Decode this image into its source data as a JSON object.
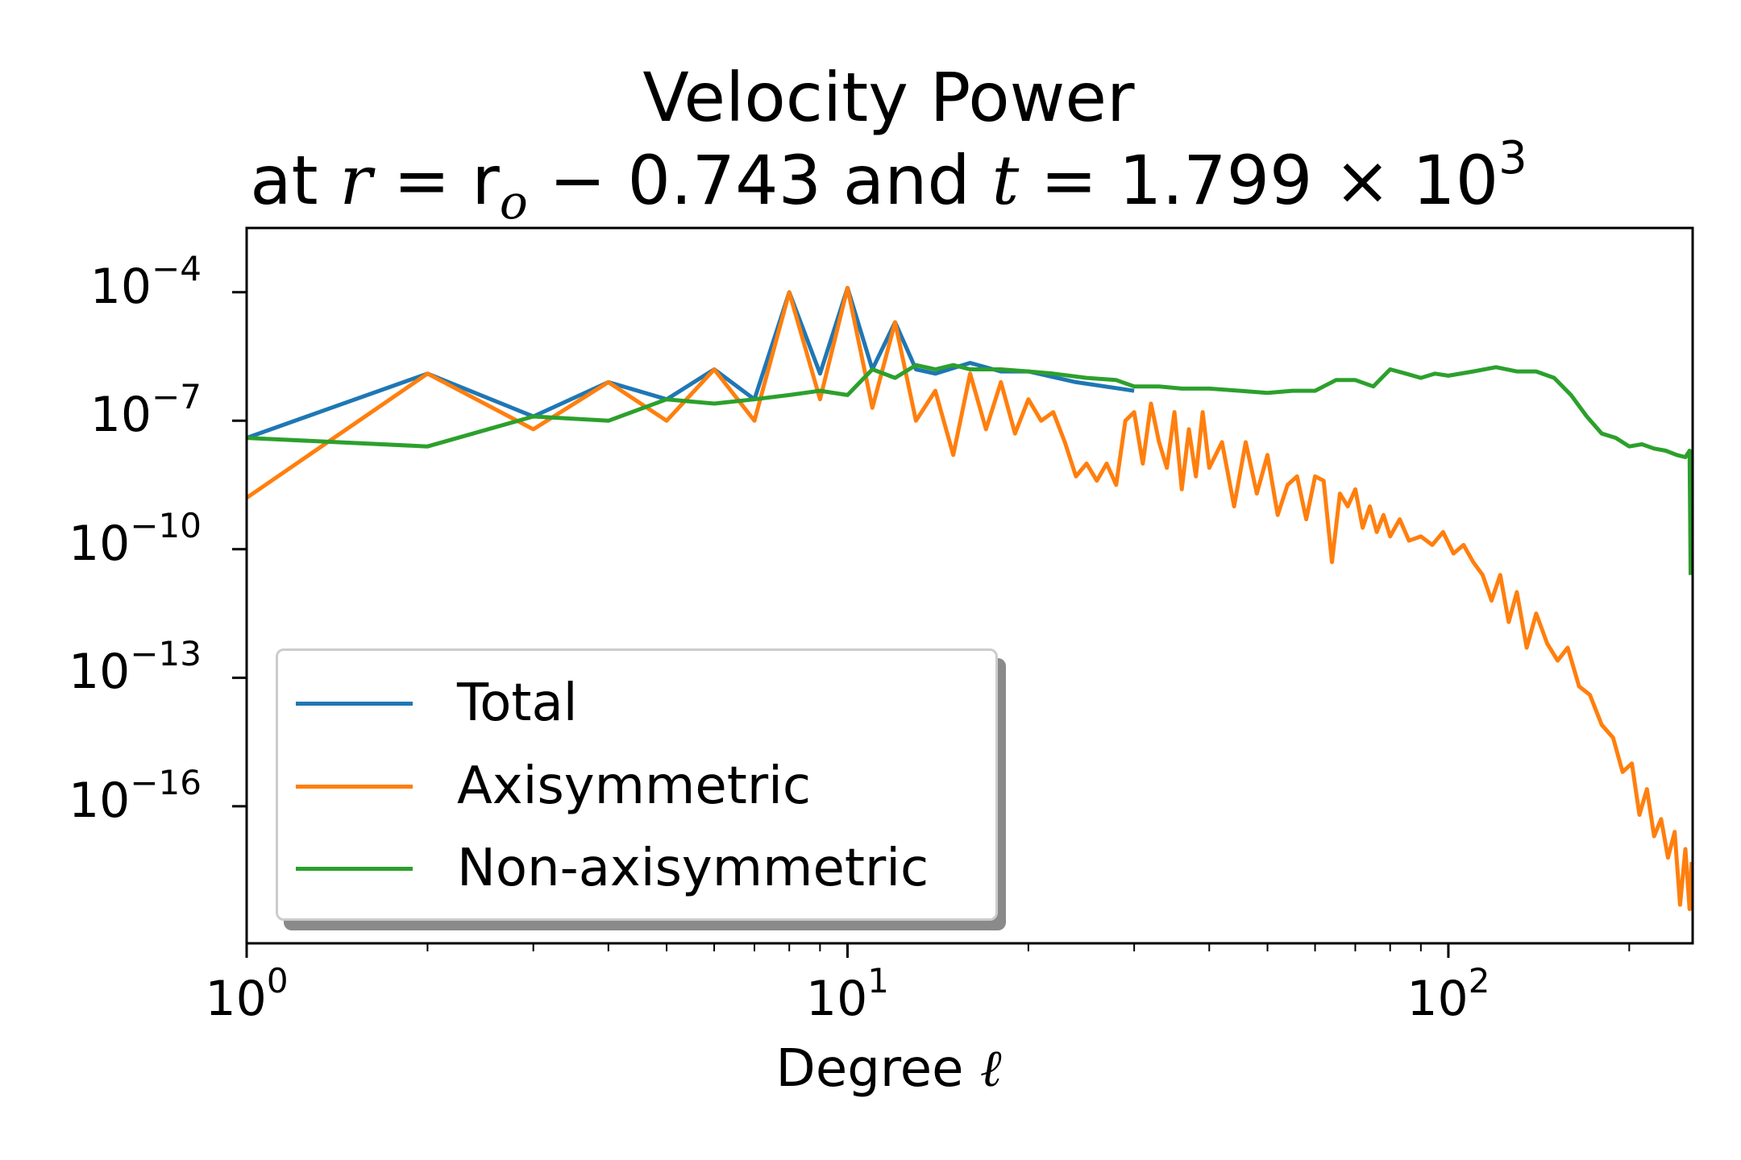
{
  "chart_data": {
    "type": "line",
    "title": "Velocity Power",
    "subtitle": {
      "prefix": "at ",
      "r_var": "r",
      "r_expr": " = r",
      "r_sub": "o",
      "r_minus": " − ",
      "r_value": "0.743",
      "and": " and ",
      "t_var": "t",
      "t_expr": " = 1.799 × 10",
      "t_exp": "3"
    },
    "xlabel": "Degree",
    "xlabel_symbol": "ℓ",
    "ylabel": "",
    "xscale": "log",
    "yscale": "log",
    "xlim": [
      1,
      255
    ],
    "ylim_log10": [
      -19.2,
      -2.5
    ],
    "x_ticks": [
      {
        "base": "10",
        "exp": "0",
        "value": 1
      },
      {
        "base": "10",
        "exp": "1",
        "value": 10
      },
      {
        "base": "10",
        "exp": "2",
        "value": 100
      }
    ],
    "y_ticks": [
      {
        "base": "10",
        "exp": "−4",
        "value": -4
      },
      {
        "base": "10",
        "exp": "−7",
        "value": -7
      },
      {
        "base": "10",
        "exp": "−10",
        "value": -10
      },
      {
        "base": "10",
        "exp": "−13",
        "value": -13
      },
      {
        "base": "10",
        "exp": "−16",
        "value": -16
      }
    ],
    "legend_position": "lower-left",
    "grid": false,
    "series": [
      {
        "name": "Total",
        "color": "#1f77b4",
        "points_log10": [
          [
            1,
            -7.4
          ],
          [
            2,
            -5.9
          ],
          [
            3,
            -6.9
          ],
          [
            4,
            -6.1
          ],
          [
            5,
            -6.5
          ],
          [
            6,
            -5.8
          ],
          [
            7,
            -6.5
          ],
          [
            8,
            -4.0
          ],
          [
            9,
            -5.9
          ],
          [
            10,
            -3.9
          ],
          [
            11,
            -5.8
          ],
          [
            12,
            -4.7
          ],
          [
            13,
            -5.8
          ],
          [
            14,
            -5.9
          ],
          [
            16,
            -5.65
          ],
          [
            18,
            -5.85
          ],
          [
            20,
            -5.85
          ],
          [
            24,
            -6.1
          ],
          [
            30,
            -6.3
          ]
        ]
      },
      {
        "name": "Axisymmetric",
        "color": "#ff7f0e",
        "points_log10": [
          [
            1,
            -8.8
          ],
          [
            2,
            -5.9
          ],
          [
            3,
            -7.2
          ],
          [
            4,
            -6.1
          ],
          [
            5,
            -7.0
          ],
          [
            6,
            -5.8
          ],
          [
            7,
            -7.0
          ],
          [
            8,
            -4.0
          ],
          [
            9,
            -6.5
          ],
          [
            10,
            -3.9
          ],
          [
            11,
            -6.7
          ],
          [
            12,
            -4.7
          ],
          [
            13,
            -7.0
          ],
          [
            14,
            -6.3
          ],
          [
            15,
            -7.8
          ],
          [
            16,
            -5.9
          ],
          [
            17,
            -7.2
          ],
          [
            18,
            -6.1
          ],
          [
            19,
            -7.3
          ],
          [
            20,
            -6.5
          ],
          [
            21,
            -7.0
          ],
          [
            22,
            -6.8
          ],
          [
            23,
            -7.5
          ],
          [
            24,
            -8.3
          ],
          [
            25,
            -8.0
          ],
          [
            26,
            -8.4
          ],
          [
            27,
            -8.0
          ],
          [
            28,
            -8.5
          ],
          [
            29,
            -7.0
          ],
          [
            30,
            -6.8
          ],
          [
            31,
            -8.0
          ],
          [
            32,
            -6.6
          ],
          [
            33,
            -7.5
          ],
          [
            34,
            -8.1
          ],
          [
            35,
            -6.8
          ],
          [
            36,
            -8.6
          ],
          [
            37,
            -7.2
          ],
          [
            38,
            -8.3
          ],
          [
            39,
            -6.8
          ],
          [
            40,
            -8.1
          ],
          [
            42,
            -7.5
          ],
          [
            44,
            -9.0
          ],
          [
            46,
            -7.5
          ],
          [
            48,
            -8.7
          ],
          [
            50,
            -7.8
          ],
          [
            52,
            -9.2
          ],
          [
            54,
            -8.5
          ],
          [
            56,
            -8.3
          ],
          [
            58,
            -9.3
          ],
          [
            60,
            -8.3
          ],
          [
            62,
            -8.4
          ],
          [
            64,
            -10.3
          ],
          [
            66,
            -8.7
          ],
          [
            68,
            -9.0
          ],
          [
            70,
            -8.6
          ],
          [
            72,
            -9.5
          ],
          [
            74,
            -9.0
          ],
          [
            76,
            -9.6
          ],
          [
            78,
            -9.2
          ],
          [
            80,
            -9.7
          ],
          [
            83,
            -9.3
          ],
          [
            86,
            -9.8
          ],
          [
            90,
            -9.7
          ],
          [
            94,
            -9.9
          ],
          [
            98,
            -9.6
          ],
          [
            102,
            -10.1
          ],
          [
            106,
            -9.9
          ],
          [
            110,
            -10.3
          ],
          [
            114,
            -10.6
          ],
          [
            118,
            -11.2
          ],
          [
            122,
            -10.6
          ],
          [
            126,
            -11.7
          ],
          [
            130,
            -11.0
          ],
          [
            135,
            -12.3
          ],
          [
            140,
            -11.5
          ],
          [
            146,
            -12.2
          ],
          [
            152,
            -12.6
          ],
          [
            158,
            -12.3
          ],
          [
            165,
            -13.2
          ],
          [
            172,
            -13.4
          ],
          [
            180,
            -14.1
          ],
          [
            188,
            -14.4
          ],
          [
            195,
            -15.2
          ],
          [
            202,
            -15.0
          ],
          [
            208,
            -16.2
          ],
          [
            214,
            -15.6
          ],
          [
            220,
            -16.7
          ],
          [
            226,
            -16.3
          ],
          [
            232,
            -17.2
          ],
          [
            238,
            -16.6
          ],
          [
            243,
            -18.3
          ],
          [
            248,
            -17.0
          ],
          [
            252,
            -18.4
          ],
          [
            254,
            -17.3
          ]
        ]
      },
      {
        "name": "Non-axisymmetric",
        "color": "#2ca02c",
        "points_log10": [
          [
            1,
            -7.4
          ],
          [
            2,
            -7.6
          ],
          [
            3,
            -6.9
          ],
          [
            4,
            -7.0
          ],
          [
            5,
            -6.5
          ],
          [
            6,
            -6.6
          ],
          [
            7,
            -6.5
          ],
          [
            8,
            -6.4
          ],
          [
            9,
            -6.3
          ],
          [
            10,
            -6.4
          ],
          [
            11,
            -5.8
          ],
          [
            12,
            -6.0
          ],
          [
            13,
            -5.7
          ],
          [
            14,
            -5.8
          ],
          [
            15,
            -5.7
          ],
          [
            16,
            -5.8
          ],
          [
            18,
            -5.8
          ],
          [
            20,
            -5.85
          ],
          [
            22,
            -5.9
          ],
          [
            25,
            -6.0
          ],
          [
            28,
            -6.05
          ],
          [
            30,
            -6.2
          ],
          [
            33,
            -6.2
          ],
          [
            36,
            -6.25
          ],
          [
            40,
            -6.25
          ],
          [
            45,
            -6.3
          ],
          [
            50,
            -6.35
          ],
          [
            55,
            -6.3
          ],
          [
            60,
            -6.3
          ],
          [
            65,
            -6.05
          ],
          [
            70,
            -6.05
          ],
          [
            75,
            -6.2
          ],
          [
            80,
            -5.8
          ],
          [
            85,
            -5.9
          ],
          [
            90,
            -6.0
          ],
          [
            95,
            -5.9
          ],
          [
            100,
            -5.95
          ],
          [
            110,
            -5.85
          ],
          [
            120,
            -5.75
          ],
          [
            130,
            -5.85
          ],
          [
            140,
            -5.85
          ],
          [
            150,
            -6.0
          ],
          [
            160,
            -6.4
          ],
          [
            170,
            -6.9
          ],
          [
            180,
            -7.3
          ],
          [
            190,
            -7.4
          ],
          [
            200,
            -7.6
          ],
          [
            210,
            -7.55
          ],
          [
            220,
            -7.65
          ],
          [
            230,
            -7.7
          ],
          [
            240,
            -7.8
          ],
          [
            248,
            -7.85
          ],
          [
            252,
            -7.7
          ],
          [
            253,
            -10.6
          ]
        ]
      }
    ]
  }
}
